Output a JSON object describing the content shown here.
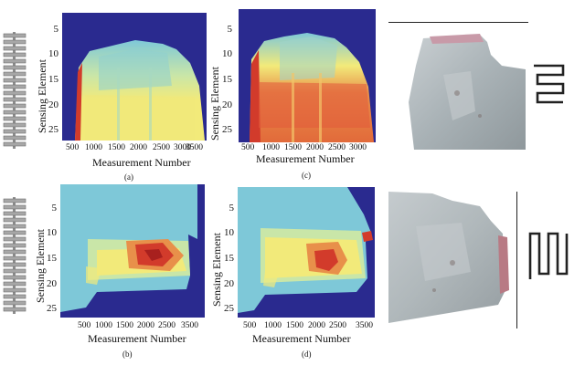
{
  "axes": {
    "ylabel": "Sensing Element",
    "xlabel": "Measurement Number",
    "yticks": [
      "5",
      "10",
      "15",
      "20",
      "25"
    ],
    "xticks": [
      "500",
      "1000",
      "1500",
      "2000",
      "2500",
      "3000",
      "3500"
    ]
  },
  "captions": {
    "a": "(a)",
    "b": "(b)",
    "c": "(c)",
    "d": "(d)"
  },
  "colors": {
    "background": "#2a2a8f",
    "cyan": "#7ec8d8",
    "yellow": "#f2ea7a",
    "orange": "#e8904a",
    "red": "#d23b2b",
    "dark_red": "#a8201e",
    "metal": "#b9c0c4"
  },
  "icons": [
    "sensor-array-icon",
    "serpentine-sensor-icon"
  ]
}
